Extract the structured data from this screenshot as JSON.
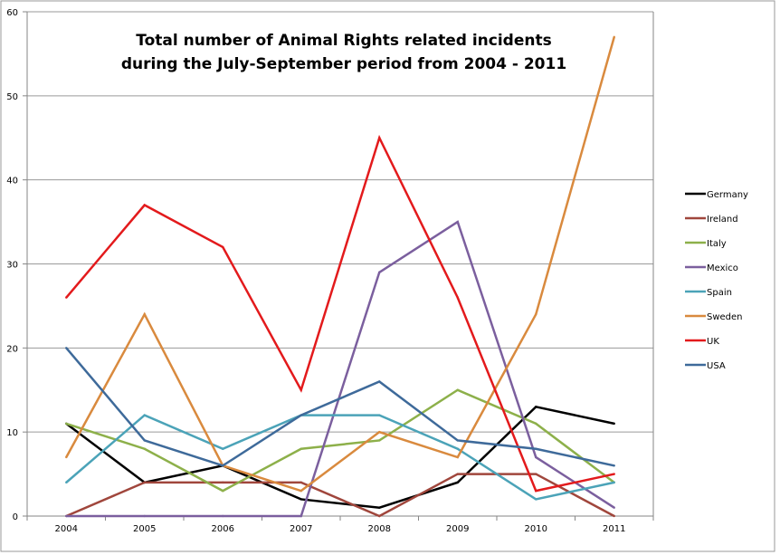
{
  "chart_data": {
    "type": "line",
    "title_lines": [
      "Total number of Animal Rights related incidents",
      "during the July-September period from 2004 - 2011"
    ],
    "xlabel": "",
    "ylabel": "",
    "categories": [
      "2004",
      "2005",
      "2006",
      "2007",
      "2008",
      "2009",
      "2010",
      "2011"
    ],
    "ylim": [
      0,
      60
    ],
    "yticks": [
      0,
      10,
      20,
      30,
      40,
      50,
      60
    ],
    "grid": true,
    "legend_placement": "right",
    "series": [
      {
        "name": "Germany",
        "color": "#000000",
        "values": [
          11,
          4,
          6,
          2,
          1,
          4,
          13,
          11
        ]
      },
      {
        "name": "Ireland",
        "color": "#A0463C",
        "values": [
          0,
          4,
          4,
          4,
          0,
          5,
          5,
          0
        ]
      },
      {
        "name": "Italy",
        "color": "#8DB04A",
        "values": [
          11,
          8,
          3,
          8,
          9,
          15,
          11,
          4
        ]
      },
      {
        "name": "Mexico",
        "color": "#7B5F9E",
        "values": [
          0,
          0,
          0,
          0,
          29,
          35,
          7,
          1
        ]
      },
      {
        "name": "Spain",
        "color": "#4BA3B8",
        "values": [
          4,
          12,
          8,
          12,
          12,
          8,
          2,
          4
        ]
      },
      {
        "name": "Sweden",
        "color": "#D98A3E",
        "values": [
          7,
          24,
          6,
          3,
          10,
          7,
          24,
          57
        ]
      },
      {
        "name": "UK",
        "color": "#E31A1C",
        "values": [
          26,
          37,
          32,
          15,
          45,
          26,
          3,
          5
        ]
      },
      {
        "name": "USA",
        "color": "#3E6A9A",
        "values": [
          20,
          9,
          6,
          12,
          16,
          9,
          8,
          6
        ]
      }
    ]
  }
}
